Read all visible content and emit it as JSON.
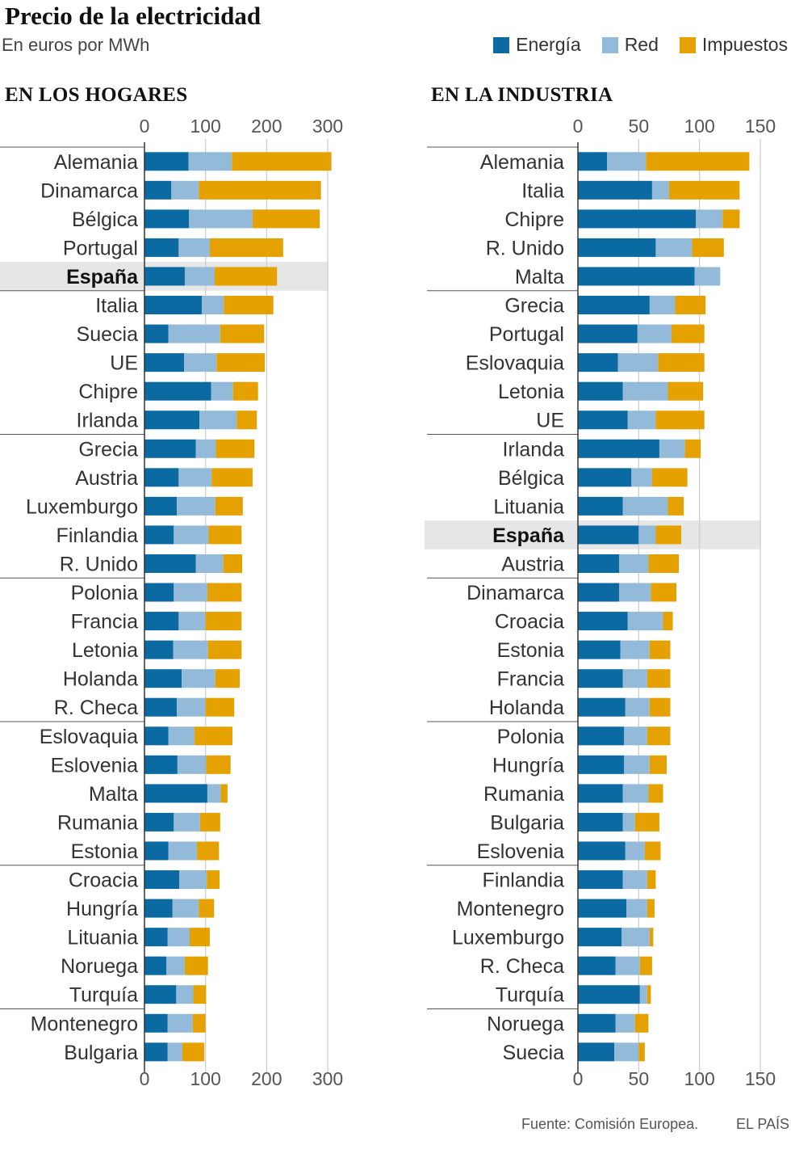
{
  "title": "Precio de la electricidad",
  "subtitle": "En euros por MWh",
  "legend": {
    "energia": "Energía",
    "red": "Red",
    "impuestos": "Impuestos"
  },
  "colors": {
    "energia": "#0a6aa1",
    "red": "#93bbd9",
    "impuestos": "#e5a100",
    "highlight": "#e6e6e6",
    "grid": "#cfcfcf"
  },
  "footer": {
    "source": "Fuente: Comisión Europea.",
    "brand": "EL PAÍS"
  },
  "chart_data": [
    {
      "type": "bar",
      "orientation": "horizontal",
      "stacked": true,
      "title": "EN LOS HOGARES",
      "xlim": [
        0,
        300
      ],
      "ticks": [
        0,
        100,
        200,
        300
      ],
      "highlight": "España",
      "categories": [
        "Alemania",
        "Dinamarca",
        "Bélgica",
        "Portugal",
        "España",
        "Italia",
        "Suecia",
        "UE",
        "Chipre",
        "Irlanda",
        "Grecia",
        "Austria",
        "Luxemburgo",
        "Finlandia",
        "R. Unido",
        "Polonia",
        "Francia",
        "Letonia",
        "Holanda",
        "R. Checa",
        "Eslovaquia",
        "Eslovenia",
        "Malta",
        "Rumania",
        "Estonia",
        "Croacia",
        "Hungría",
        "Lituania",
        "Noruega",
        "Turquía",
        "Montenegro",
        "Bulgaria"
      ],
      "series": [
        {
          "name": "Energía",
          "values": [
            72,
            44,
            73,
            56,
            66,
            94,
            39,
            65,
            109,
            90,
            84,
            56,
            53,
            48,
            84,
            48,
            56,
            47,
            61,
            53,
            39,
            54,
            103,
            48,
            39,
            57,
            46,
            38,
            36,
            52,
            38,
            38
          ]
        },
        {
          "name": "Red",
          "values": [
            71,
            45,
            104,
            51,
            49,
            36,
            85,
            53,
            36,
            61,
            33,
            54,
            63,
            57,
            45,
            55,
            44,
            57,
            55,
            47,
            43,
            47,
            22,
            43,
            47,
            45,
            43,
            36,
            30,
            28,
            41,
            24
          ]
        },
        {
          "name": "Impuestos",
          "values": [
            163,
            200,
            110,
            120,
            102,
            81,
            72,
            79,
            41,
            33,
            63,
            67,
            45,
            54,
            31,
            56,
            59,
            55,
            40,
            47,
            62,
            40,
            11,
            33,
            36,
            21,
            25,
            33,
            38,
            21,
            21,
            36
          ]
        }
      ]
    },
    {
      "type": "bar",
      "orientation": "horizontal",
      "stacked": true,
      "title": "EN LA INDUSTRIA",
      "xlim": [
        0,
        150
      ],
      "ticks": [
        0,
        50,
        100,
        150
      ],
      "highlight": "España",
      "categories": [
        "Alemania",
        "Italia",
        "Chipre",
        "R. Unido",
        "Malta",
        "Grecia",
        "Portugal",
        "Eslovaquia",
        "Letonia",
        "UE",
        "Irlanda",
        "Bélgica",
        "Lituania",
        "España",
        "Austria",
        "Dinamarca",
        "Croacia",
        "Estonia",
        "Francia",
        "Holanda",
        "Polonia",
        "Hungría",
        "Rumania",
        "Bulgaria",
        "Eslovenia",
        "Finlandia",
        "Montenegro",
        "Luxemburgo",
        "R. Checa",
        "Turquía",
        "Noruega",
        "Suecia"
      ],
      "series": [
        {
          "name": "Energía",
          "values": [
            24,
            61,
            97,
            64,
            96,
            59,
            49,
            33,
            37,
            41,
            67,
            44,
            37,
            50,
            34,
            34,
            41,
            35,
            37,
            39,
            38,
            38,
            37,
            37,
            39,
            37,
            40,
            36,
            31,
            51,
            31,
            30
          ]
        },
        {
          "name": "Red",
          "values": [
            32,
            14,
            22,
            30,
            21,
            21,
            28,
            33,
            37,
            23,
            21,
            17,
            37,
            14,
            24,
            26,
            29,
            24,
            20,
            20,
            19,
            21,
            21,
            10,
            16,
            20,
            17,
            23,
            20,
            6,
            16,
            20
          ]
        },
        {
          "name": "Impuestos",
          "values": [
            85,
            58,
            14,
            26,
            0,
            25,
            27,
            38,
            29,
            40,
            13,
            29,
            13,
            21,
            25,
            21,
            8,
            17,
            19,
            17,
            19,
            14,
            12,
            20,
            13,
            7,
            6,
            3,
            10,
            3,
            11,
            5
          ]
        }
      ]
    }
  ]
}
